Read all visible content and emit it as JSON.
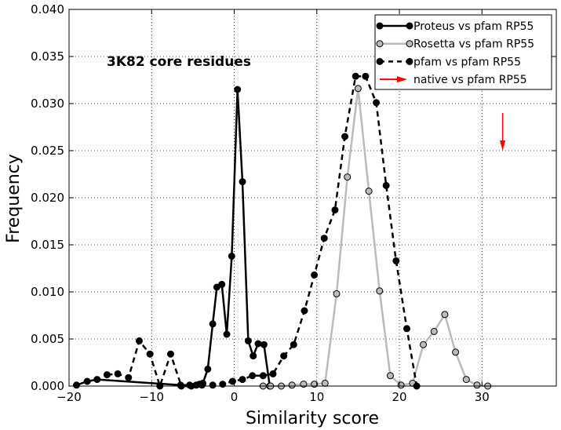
{
  "chart_data": {
    "type": "line",
    "title": "",
    "xlabel": "Similarity score",
    "ylabel": "Frequency",
    "xlim": [
      -20,
      39
    ],
    "ylim": [
      0,
      0.04
    ],
    "xticks": [
      -20,
      -10,
      0,
      10,
      20,
      30
    ],
    "xtick_labels": [
      "−20",
      "−10",
      "0",
      "10",
      "20",
      "30"
    ],
    "yticks": [
      0,
      0.005,
      0.01,
      0.015,
      0.02,
      0.025,
      0.03,
      0.035,
      0.04
    ],
    "ytick_labels": [
      "0.000",
      "0.005",
      "0.010",
      "0.015",
      "0.020",
      "0.025",
      "0.030",
      "0.035",
      "0.040"
    ],
    "grid": true,
    "legend_position": "top-right",
    "annotation": "3K82 core residues",
    "series": [
      {
        "name": "Proteus vs pfam RP55",
        "color": "#000000",
        "marker_fill": "#000000",
        "line_style": "solid",
        "x": [
          -19.1,
          -17.8,
          -16.6,
          -6.5,
          -5.4,
          -4.6,
          -4.2,
          -3.8,
          -3.2,
          -2.6,
          -2.1,
          -1.5,
          -0.9,
          -0.3,
          0.4,
          1.0,
          1.7,
          2.3,
          2.9,
          3.6,
          4.3
        ],
        "y": [
          0.0001,
          0.0005,
          0.0007,
          0.0001,
          0.0001,
          0.0001,
          0.0002,
          0.0003,
          0.0018,
          0.0066,
          0.0105,
          0.0108,
          0.0055,
          0.0138,
          0.0315,
          0.0217,
          0.0048,
          0.0032,
          0.0045,
          0.0044,
          0.0
        ]
      },
      {
        "name": "Rosetta vs pfam RP55",
        "color": "#bbbbbb",
        "marker_fill": "#bbbbbb",
        "line_style": "solid",
        "x": [
          3.5,
          4.4,
          5.7,
          7.0,
          8.4,
          9.7,
          11.0,
          12.4,
          13.7,
          15.0,
          16.3,
          17.6,
          18.9,
          20.2,
          21.6,
          22.9,
          24.2,
          25.5,
          26.8,
          28.1,
          29.4,
          30.7
        ],
        "y": [
          0.0,
          0.0,
          0.0,
          0.0001,
          0.0002,
          0.0002,
          0.0003,
          0.0098,
          0.0222,
          0.0316,
          0.0207,
          0.0101,
          0.0011,
          0.0001,
          0.0003,
          0.0044,
          0.0058,
          0.0076,
          0.0036,
          0.0007,
          0.0001,
          0.0
        ]
      },
      {
        "name": "pfam vs pfam RP55",
        "color": "#000000",
        "marker_fill": "#000000",
        "line_style": "dashed",
        "x": [
          -15.4,
          -14.1,
          -12.8,
          -11.5,
          -10.2,
          -9.0,
          -7.7,
          -6.4,
          -5.2,
          -3.9,
          -2.6,
          -1.4,
          -0.2,
          1.0,
          2.2,
          3.5,
          4.7,
          6.0,
          7.2,
          8.5,
          9.7,
          10.9,
          12.2,
          13.4,
          14.7,
          15.9,
          17.2,
          18.4,
          19.6,
          20.9,
          22.1
        ],
        "y": [
          0.0012,
          0.0013,
          0.0009,
          0.0048,
          0.0034,
          0.0,
          0.0034,
          0.0,
          0.0,
          0.0001,
          0.0001,
          0.0002,
          0.0005,
          0.0007,
          0.0011,
          0.0011,
          0.0013,
          0.0032,
          0.0044,
          0.008,
          0.0118,
          0.0157,
          0.0187,
          0.0265,
          0.0329,
          0.0329,
          0.0301,
          0.0213,
          0.0133,
          0.0061,
          0.0
        ]
      }
    ],
    "native": {
      "name": "native vs pfam RP55",
      "color": "#ff0000",
      "x": 32.5,
      "y_start": 0.029,
      "y_end": 0.025
    }
  }
}
